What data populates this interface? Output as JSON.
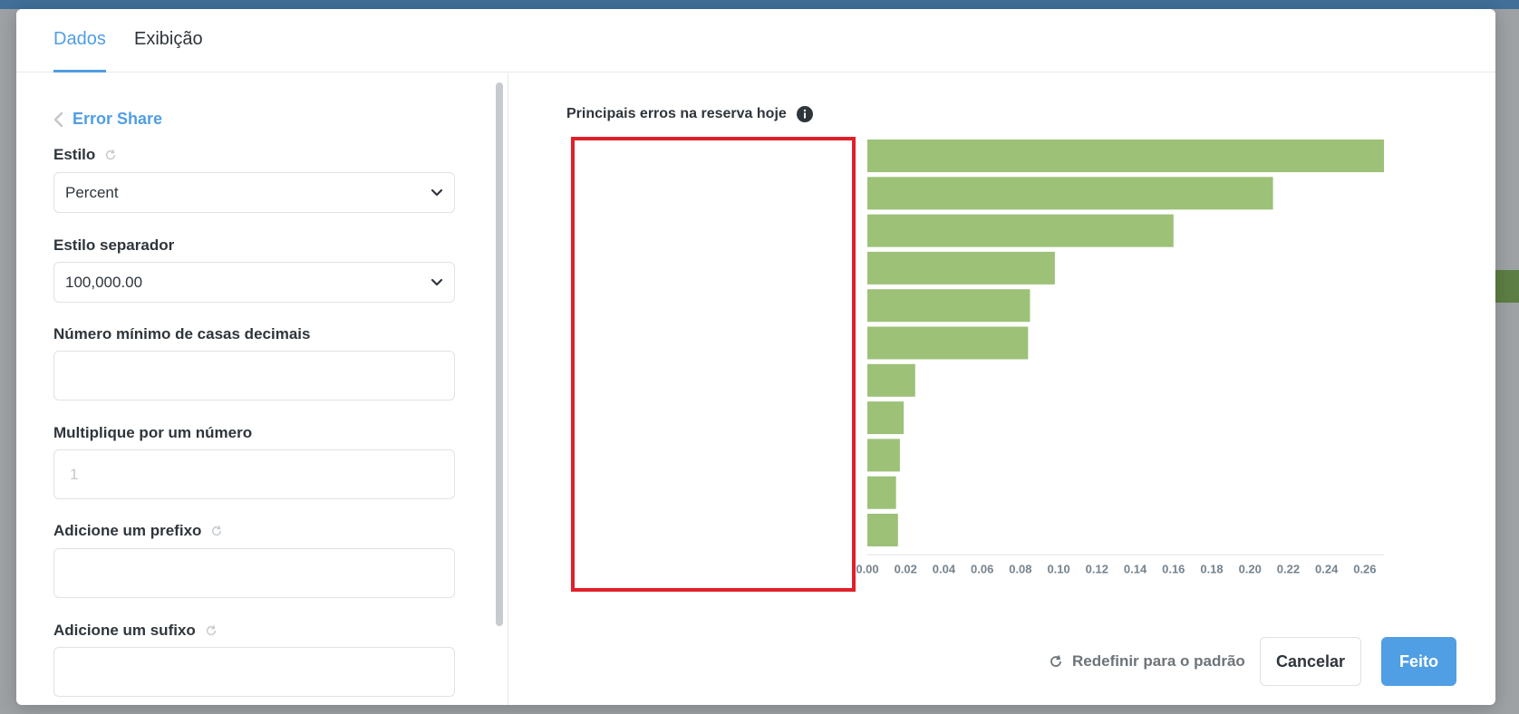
{
  "tabs": [
    {
      "label": "Dados",
      "active": true
    },
    {
      "label": "Exibição",
      "active": false
    }
  ],
  "settings": {
    "back_label": "Error Share",
    "style_label": "Estilo",
    "style_value": "Percent",
    "separator_label": "Estilo separador",
    "separator_value": "100,000.00",
    "min_decimals_label": "Número mínimo de casas decimais",
    "min_decimals_value": "",
    "multiply_label": "Multiplique por um número",
    "multiply_placeholder": "1",
    "prefix_label": "Adicione um prefixo",
    "prefix_value": "",
    "suffix_label": "Adicione um sufixo",
    "suffix_value": ""
  },
  "chart": {
    "title": "Principais erros na reserva hoje"
  },
  "chart_data": {
    "type": "bar",
    "orientation": "horizontal",
    "title": "Principais erros na reserva hoje",
    "categories": [
      "",
      "",
      "",
      "",
      "",
      "",
      "",
      "",
      "",
      "",
      ""
    ],
    "values": [
      0.27,
      0.212,
      0.16,
      0.098,
      0.085,
      0.084,
      0.025,
      0.019,
      0.017,
      0.015,
      0.016
    ],
    "xlim": [
      0,
      0.27
    ],
    "xticks": [
      "0.00",
      "0.02",
      "0.04",
      "0.06",
      "0.08",
      "0.10",
      "0.12",
      "0.14",
      "0.16",
      "0.18",
      "0.20",
      "0.22",
      "0.24",
      "0.26"
    ],
    "bar_color": "#9cc177",
    "grid": false
  },
  "footer": {
    "reset_label": "Redefinir para o padrão",
    "cancel_label": "Cancelar",
    "done_label": "Feito"
  },
  "colors": {
    "accent": "#509ee3",
    "redaction": "#e0202a"
  }
}
